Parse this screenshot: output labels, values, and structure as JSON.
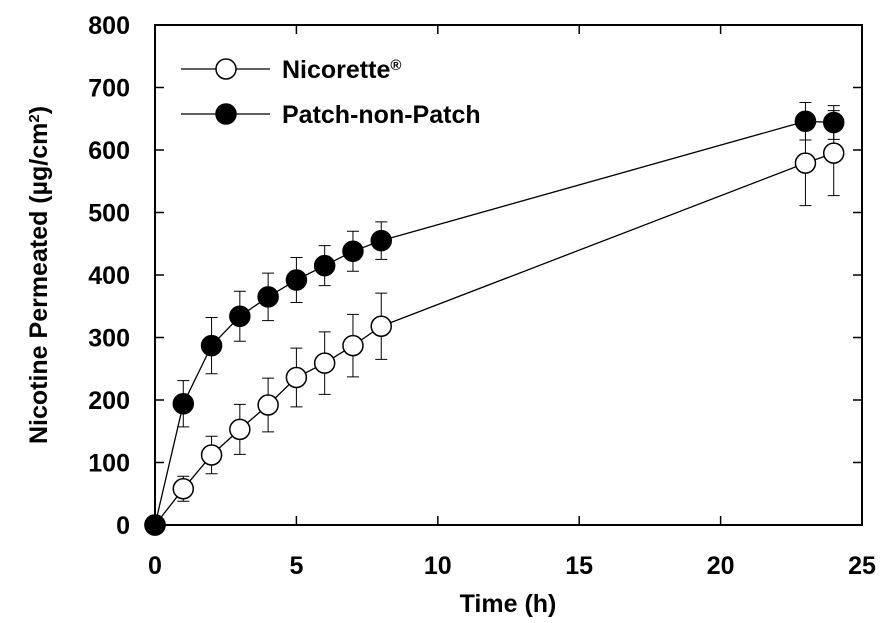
{
  "chart_data": {
    "type": "line",
    "xlabel": "Time (h)",
    "ylabel_main": "Nicotine Permeated (µg/cm",
    "ylabel_sup": "2",
    "ylabel_tail": ")",
    "xlim": [
      0,
      25
    ],
    "ylim": [
      0,
      800
    ],
    "xticks": [
      0,
      5,
      10,
      15,
      20,
      25
    ],
    "yticks": [
      0,
      100,
      200,
      300,
      400,
      500,
      600,
      700,
      800
    ],
    "grid": false,
    "error_bars": true,
    "legend_position": "top-left",
    "series": [
      {
        "name": "Nicorette",
        "name_sup": "®",
        "marker": "open-circle",
        "color": "#000000",
        "fill": "#ffffff",
        "x": [
          0,
          1,
          2,
          3,
          4,
          5,
          6,
          7,
          8,
          23,
          24
        ],
        "y": [
          0,
          58,
          112,
          153,
          192,
          236,
          259,
          287,
          318,
          579,
          595
        ],
        "err": [
          0,
          20,
          30,
          40,
          43,
          47,
          50,
          50,
          53,
          68,
          68
        ]
      },
      {
        "name": "Patch-non-Patch",
        "name_sup": "",
        "marker": "filled-circle",
        "color": "#000000",
        "fill": "#000000",
        "x": [
          0,
          1,
          2,
          3,
          4,
          5,
          6,
          7,
          8,
          23,
          24
        ],
        "y": [
          0,
          194,
          287,
          334,
          365,
          392,
          415,
          438,
          455,
          646,
          644
        ],
        "err": [
          0,
          37,
          45,
          40,
          38,
          36,
          32,
          32,
          30,
          30,
          27
        ]
      }
    ]
  }
}
